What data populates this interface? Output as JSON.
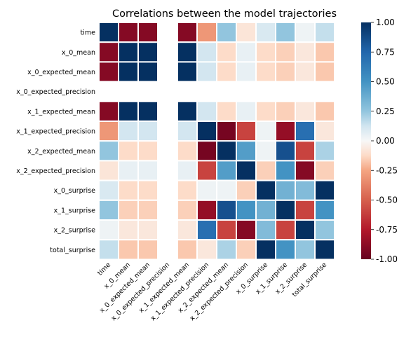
{
  "chart_data": {
    "type": "heatmap",
    "title": "Correlations between the model trajectories",
    "variables": [
      "time",
      "x_0_mean",
      "x_0_expected_mean",
      "x_0_expected_precision",
      "x_1_expected_mean",
      "x_1_expected_precision",
      "x_2_expected_mean",
      "x_2_expected_precision",
      "x_0_surprise",
      "x_1_surprise",
      "x_2_surprise",
      "total_surprise"
    ],
    "matrix": [
      [
        1.0,
        -0.9,
        -0.9,
        null,
        -0.9,
        -0.3,
        0.25,
        -0.08,
        0.1,
        0.25,
        0.03,
        0.15
      ],
      [
        -0.9,
        1.0,
        1.0,
        null,
        1.0,
        0.12,
        -0.12,
        0.05,
        -0.12,
        -0.15,
        -0.07,
        -0.17
      ],
      [
        -0.9,
        1.0,
        1.0,
        null,
        1.0,
        0.12,
        -0.12,
        0.05,
        -0.12,
        -0.15,
        -0.07,
        -0.17
      ],
      [
        null,
        null,
        null,
        null,
        null,
        null,
        null,
        null,
        null,
        null,
        null,
        null
      ],
      [
        -0.9,
        1.0,
        1.0,
        null,
        1.0,
        0.12,
        -0.12,
        0.05,
        -0.12,
        -0.15,
        -0.07,
        -0.17
      ],
      [
        -0.3,
        0.12,
        0.12,
        null,
        0.12,
        1.0,
        -0.95,
        -0.6,
        0.03,
        -0.85,
        0.7,
        -0.07
      ],
      [
        0.25,
        -0.12,
        -0.12,
        null,
        -0.12,
        -0.95,
        1.0,
        0.45,
        0.03,
        0.85,
        -0.6,
        0.2
      ],
      [
        -0.08,
        0.05,
        0.05,
        null,
        0.05,
        -0.6,
        0.45,
        1.0,
        -0.15,
        0.5,
        -0.9,
        -0.15
      ],
      [
        0.1,
        -0.12,
        -0.12,
        null,
        -0.12,
        0.03,
        0.03,
        -0.15,
        1.0,
        0.35,
        0.3,
        1.0
      ],
      [
        0.25,
        -0.15,
        -0.15,
        null,
        -0.15,
        -0.85,
        0.85,
        0.5,
        0.35,
        1.0,
        -0.6,
        0.5
      ],
      [
        0.03,
        -0.07,
        -0.07,
        null,
        -0.07,
        0.7,
        -0.6,
        -0.9,
        0.3,
        -0.6,
        1.0,
        0.25
      ],
      [
        0.15,
        -0.17,
        -0.17,
        null,
        -0.17,
        -0.07,
        0.2,
        -0.15,
        1.0,
        0.5,
        0.25,
        1.0
      ]
    ],
    "colorbar": {
      "min": -1.0,
      "max": 1.0,
      "ticks": [
        "-1.00",
        "-0.75",
        "-0.50",
        "-0.25",
        "0.00",
        "0.25",
        "0.50",
        "0.75",
        "1.00"
      ],
      "colormap": "RdBu"
    },
    "colors": {
      "neg_end": "#67001f",
      "pos_end": "#053061",
      "cell_border": "#ffffff"
    }
  }
}
